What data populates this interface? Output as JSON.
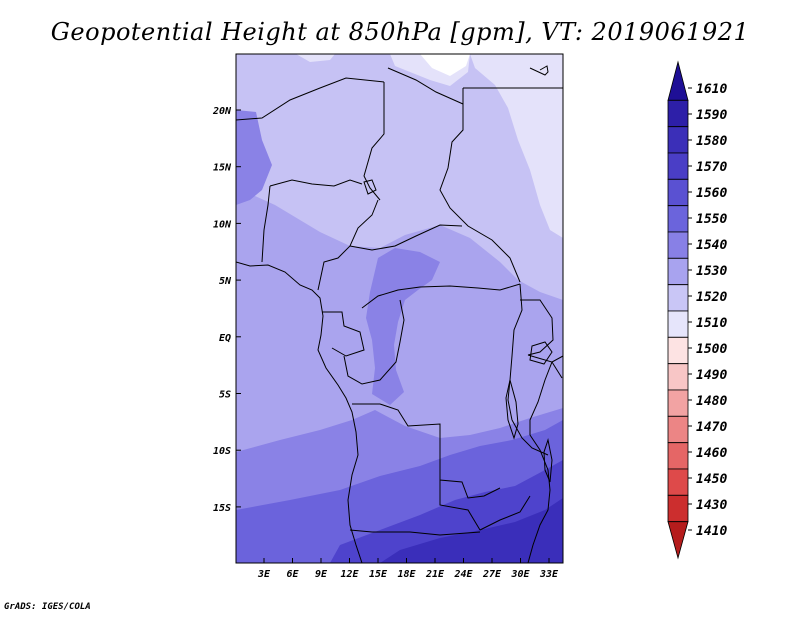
{
  "title": "Geopotential Height at 850hPa [gpm], VT: 2019061921",
  "credit": "GrADS: IGES/COLA",
  "lat_labels": [
    "20N",
    "15N",
    "10N",
    "5N",
    "EQ",
    "5S",
    "10S",
    "15S"
  ],
  "lon_labels": [
    "3E",
    "6E",
    "9E",
    "12E",
    "15E",
    "18E",
    "21E",
    "24E",
    "27E",
    "30E",
    "33E"
  ],
  "colorbar": {
    "levels": [
      "1610",
      "1590",
      "1580",
      "1570",
      "1560",
      "1550",
      "1540",
      "1530",
      "1520",
      "1510",
      "1500",
      "1490",
      "1480",
      "1470",
      "1460",
      "1450",
      "1430",
      "1410"
    ],
    "colors": [
      "#1e0f96",
      "#2d1fa8",
      "#3b2fb8",
      "#4a3ec6",
      "#5a51d2",
      "#6b64dc",
      "#8880e6",
      "#a8a3ef",
      "#c9c6f6",
      "#e6e5fb",
      "#fde3e3",
      "#f8c6c6",
      "#f2a3a3",
      "#ec8585",
      "#e56666",
      "#de4a4a",
      "#cc2e2e",
      "#b51c1c"
    ]
  },
  "map_colors": {
    "h1520": "#e4e2fa",
    "h1530": "#c6c2f4",
    "h1540": "#aaa4ee",
    "h1550": "#8a82e6",
    "h1560": "#6b63dc",
    "h1570": "#4e43cc",
    "h1580": "#3a2eba",
    "white": "#ffffff"
  }
}
